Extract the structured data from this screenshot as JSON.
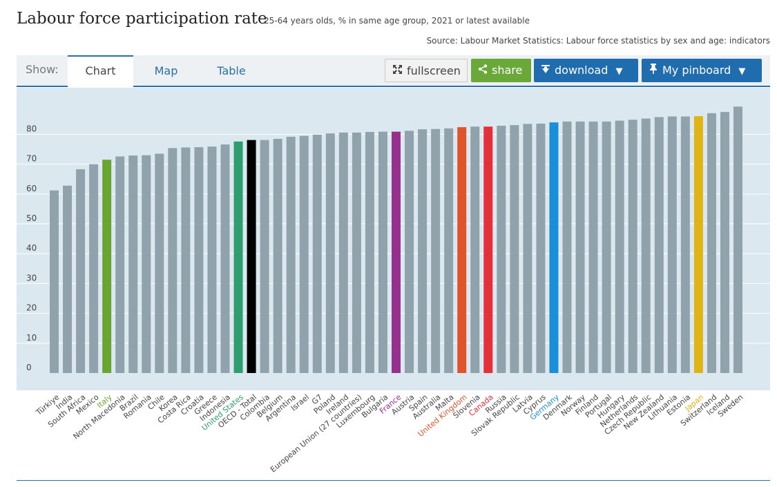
{
  "header": {
    "title": "Labour force participation rate",
    "subtitle": "25-64 years olds, % in same age group, 2021 or latest available",
    "source": "Source: Labour Market Statistics: Labour force statistics by sex and age: indicators"
  },
  "toolbar": {
    "show_label": "Show:",
    "tabs": [
      {
        "label": "Chart"
      },
      {
        "label": "Map"
      },
      {
        "label": "Table"
      }
    ],
    "fullscreen_label": "fullscreen",
    "share_label": "share",
    "download_label": "download",
    "pinboard_label": "My pinboard"
  },
  "icons": {
    "fullscreen": "expand-arrows-icon",
    "share": "share-icon",
    "download": "download-arrow-icon",
    "pinboard": "pin-icon",
    "dropdown": "triangle-down-icon"
  },
  "colors": {
    "default_bar": "#90a3ad",
    "chart_background": "#dce8ef",
    "accent_blue": "#1f6cae",
    "share_green": "#69a839",
    "Italy": "#6aa533",
    "United States": "#2f9e6e",
    "OECD - Total": "#000000",
    "France": "#96308c",
    "United Kingdom": "#e0542a",
    "Canada": "#e3303a",
    "Germany": "#1a8fd8",
    "Japan": "#e0b414"
  },
  "chart_data": {
    "type": "bar",
    "ylim": [
      0,
      90
    ],
    "yticks": [
      0,
      10,
      20,
      30,
      40,
      50,
      60,
      70,
      80
    ],
    "grid": true,
    "categories": [
      "Türkiye",
      "India",
      "South Africa",
      "Mexico",
      "Italy",
      "North Macedonia",
      "Brazil",
      "Romania",
      "Chile",
      "Korea",
      "Costa Rica",
      "Croatia",
      "Greece",
      "Indonesia",
      "United States",
      "OECD - Total",
      "Colombia",
      "Belgium",
      "Argentina",
      "Israel",
      "G7",
      "Poland",
      "Ireland",
      "European Union (27 countries)",
      "Luxembourg",
      "Bulgaria",
      "France",
      "Austria",
      "Spain",
      "Australia",
      "Malta",
      "United Kingdom",
      "Slovenia",
      "Canada",
      "Russia",
      "Slovak Republic",
      "Latvia",
      "Cyprus",
      "Germany",
      "Denmark",
      "Norway",
      "Finland",
      "Portugal",
      "Hungary",
      "Netherlands",
      "Czech Republic",
      "New Zealand",
      "Lithuania",
      "Estonia",
      "Japan",
      "Switzerland",
      "Iceland",
      "Sweden"
    ],
    "values": [
      61.2,
      62.8,
      68.3,
      70.0,
      71.5,
      72.6,
      72.9,
      73.0,
      73.5,
      75.4,
      75.6,
      75.7,
      75.9,
      76.6,
      77.6,
      78.1,
      78.1,
      78.5,
      79.2,
      79.5,
      79.9,
      80.3,
      80.6,
      80.6,
      80.8,
      80.9,
      80.9,
      81.2,
      81.7,
      81.8,
      82.0,
      82.4,
      82.6,
      82.6,
      82.9,
      83.1,
      83.5,
      83.6,
      84.0,
      84.3,
      84.3,
      84.3,
      84.3,
      84.6,
      84.9,
      85.3,
      85.8,
      86.0,
      86.0,
      86.1,
      87.1,
      87.5,
      89.3
    ]
  }
}
